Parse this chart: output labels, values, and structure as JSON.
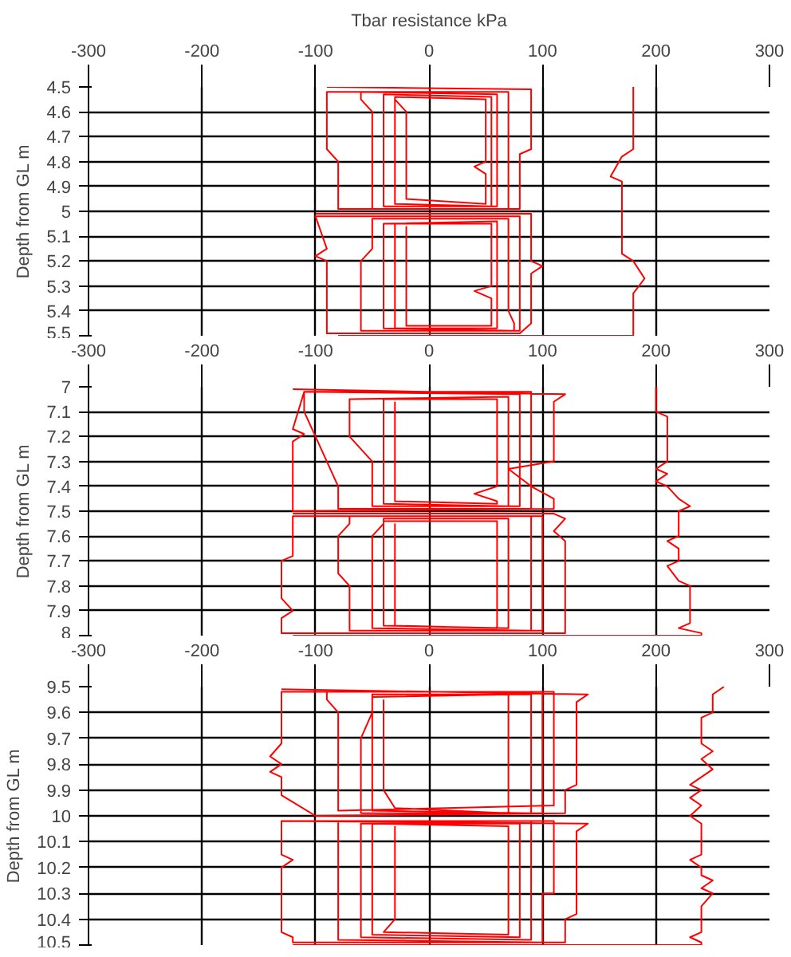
{
  "chart_data": [
    {
      "type": "line",
      "title": "Tbar resistance kPa",
      "ylabel": "Depth from GL m",
      "xlim": [
        -300,
        300
      ],
      "xticks": [
        -300,
        -200,
        -100,
        0,
        100,
        200,
        300
      ],
      "ylim": [
        5.5,
        4.5
      ],
      "yticks": [
        4.5,
        4.6,
        4.7,
        4.8,
        4.9,
        5,
        5.1,
        5.2,
        5.3,
        5.4,
        5.5
      ],
      "grid": true,
      "marker": "none",
      "line_style": "solid",
      "series": [
        {
          "color": "#ff0000",
          "x": [
            180,
            180,
            170,
            160,
            170,
            170,
            180,
            190,
            180,
            180,
            -80
          ],
          "values": [
            4.5,
            4.75,
            4.78,
            4.86,
            4.88,
            5.17,
            5.2,
            5.27,
            5.33,
            5.5,
            5.5
          ]
        },
        {
          "color": "#ff0000",
          "x": [
            -90,
            90,
            90,
            80,
            80,
            -80,
            -80,
            -90,
            -90,
            70,
            70,
            -50,
            -50,
            -60,
            -60,
            60,
            60,
            -40,
            -40,
            55,
            55,
            -30,
            -30,
            50,
            50,
            40,
            50,
            50,
            -20,
            -20,
            -30
          ],
          "values": [
            4.5,
            4.51,
            4.75,
            4.77,
            4.99,
            4.99,
            4.8,
            4.75,
            4.52,
            4.52,
            4.99,
            4.99,
            4.6,
            4.55,
            4.52,
            4.53,
            4.98,
            4.98,
            4.53,
            4.54,
            4.98,
            4.97,
            4.54,
            4.55,
            4.8,
            4.82,
            4.85,
            4.97,
            4.95,
            4.6,
            4.55
          ]
        },
        {
          "color": "#ff0000",
          "x": [
            -100,
            90,
            90,
            100,
            90,
            90,
            80,
            -90,
            -90,
            -100,
            -90,
            -100,
            80,
            80,
            -60,
            -60,
            -50,
            -50,
            70,
            70,
            75,
            75,
            -40,
            -40,
            60,
            60,
            -30,
            -30,
            55,
            55,
            40,
            55,
            55,
            -20,
            -20
          ],
          "values": [
            5.01,
            5.01,
            5.2,
            5.22,
            5.25,
            5.45,
            5.49,
            5.49,
            5.2,
            5.18,
            5.15,
            5.02,
            5.02,
            5.48,
            5.48,
            5.2,
            5.15,
            5.03,
            5.03,
            5.4,
            5.45,
            5.48,
            5.47,
            5.05,
            5.04,
            5.47,
            5.47,
            5.05,
            5.05,
            5.3,
            5.32,
            5.35,
            5.46,
            5.46,
            5.06
          ]
        }
      ]
    },
    {
      "type": "line",
      "ylabel": "Depth from GL m",
      "xlim": [
        -300,
        300
      ],
      "xticks": [
        -300,
        -200,
        -100,
        0,
        100,
        200,
        300
      ],
      "ylim": [
        8,
        7
      ],
      "yticks": [
        7,
        7.1,
        7.2,
        7.3,
        7.4,
        7.5,
        7.6,
        7.7,
        7.8,
        7.9,
        8
      ],
      "grid": true,
      "marker": "none",
      "line_style": "solid",
      "series": [
        {
          "color": "#ff0000",
          "x": [
            200,
            200,
            210,
            210,
            200,
            210,
            200,
            210,
            220,
            230,
            220,
            220,
            210,
            220,
            220,
            210,
            220,
            230,
            230,
            220,
            240,
            240,
            -120
          ],
          "values": [
            7.0,
            7.1,
            7.12,
            7.3,
            7.33,
            7.35,
            7.38,
            7.4,
            7.45,
            7.48,
            7.5,
            7.6,
            7.62,
            7.65,
            7.7,
            7.72,
            7.78,
            7.8,
            7.95,
            7.97,
            7.99,
            8.0,
            8.0
          ]
        },
        {
          "color": "#ff0000",
          "x": [
            -120,
            120,
            110,
            110,
            70,
            90,
            110,
            110,
            -120,
            -120,
            -110,
            -120,
            -110,
            90,
            90,
            -80,
            -80,
            -110,
            -110,
            80,
            80,
            -50,
            -50,
            -70,
            -70,
            70,
            70,
            -40,
            -40,
            60,
            60,
            40,
            60,
            60,
            -30,
            -30
          ],
          "values": [
            7.01,
            7.03,
            7.06,
            7.3,
            7.33,
            7.4,
            7.45,
            7.49,
            7.5,
            7.22,
            7.19,
            7.17,
            7.02,
            7.02,
            7.49,
            7.49,
            7.4,
            7.1,
            7.02,
            7.03,
            7.48,
            7.48,
            7.3,
            7.2,
            7.05,
            7.04,
            7.48,
            7.47,
            7.05,
            7.05,
            7.4,
            7.43,
            7.46,
            7.47,
            7.46,
            7.06
          ]
        },
        {
          "color": "#ff0000",
          "x": [
            -120,
            110,
            120,
            110,
            120,
            120,
            -130,
            -130,
            -120,
            -130,
            -130,
            -120,
            -120,
            100,
            100,
            -70,
            -70,
            -80,
            -80,
            -70,
            -70,
            90,
            90,
            -50,
            -50,
            -40,
            -40,
            70,
            70,
            -40,
            -40,
            60,
            60,
            -30,
            -30
          ],
          "values": [
            7.51,
            7.51,
            7.53,
            7.58,
            7.62,
            7.99,
            7.99,
            7.93,
            7.9,
            7.85,
            7.7,
            7.68,
            7.52,
            7.52,
            7.98,
            7.98,
            7.8,
            7.75,
            7.6,
            7.55,
            7.52,
            7.52,
            7.98,
            7.97,
            7.6,
            7.55,
            7.53,
            7.53,
            7.97,
            7.96,
            7.54,
            7.54,
            7.97,
            7.96,
            7.55
          ]
        }
      ]
    },
    {
      "type": "line",
      "ylabel": "Depth from GL m",
      "xlim": [
        -300,
        300
      ],
      "xticks": [
        -300,
        -200,
        -100,
        0,
        100,
        200,
        300
      ],
      "ylim": [
        10.5,
        9.5
      ],
      "yticks": [
        9.5,
        9.6,
        9.7,
        9.8,
        9.9,
        10,
        10.1,
        10.2,
        10.3,
        10.4,
        10.5
      ],
      "grid": true,
      "marker": "none",
      "line_style": "solid",
      "series": [
        {
          "color": "#ff0000",
          "x": [
            260,
            250,
            250,
            240,
            240,
            250,
            240,
            250,
            240,
            230,
            240,
            230,
            240,
            230,
            240,
            240,
            230,
            240,
            240,
            250,
            240,
            250,
            240,
            240,
            230,
            240,
            240,
            -120
          ],
          "values": [
            9.5,
            9.53,
            9.6,
            9.62,
            9.72,
            9.75,
            9.78,
            9.82,
            9.85,
            9.88,
            9.9,
            9.93,
            9.96,
            10.0,
            10.03,
            10.15,
            10.17,
            10.2,
            10.23,
            10.25,
            10.28,
            10.3,
            10.35,
            10.45,
            10.47,
            10.49,
            10.5,
            10.5
          ]
        },
        {
          "color": "#ff0000",
          "x": [
            -130,
            140,
            130,
            130,
            120,
            120,
            -100,
            -130,
            -130,
            -140,
            -130,
            -140,
            -130,
            -130,
            110,
            110,
            -80,
            -80,
            -90,
            -90,
            100,
            100,
            -60,
            -60,
            -50,
            -50,
            90,
            90,
            -50,
            -50,
            70,
            70,
            -30,
            -40,
            -40
          ],
          "values": [
            9.51,
            9.53,
            9.56,
            9.88,
            9.9,
            9.99,
            10.0,
            9.92,
            9.85,
            9.83,
            9.8,
            9.77,
            9.72,
            9.52,
            9.52,
            9.96,
            9.98,
            9.6,
            9.55,
            9.52,
            9.52,
            9.99,
            9.99,
            9.7,
            9.6,
            9.53,
            9.53,
            9.99,
            9.98,
            9.54,
            9.53,
            9.99,
            9.97,
            9.9,
            9.55
          ]
        },
        {
          "color": "#ff0000",
          "x": [
            -130,
            140,
            130,
            130,
            120,
            120,
            -120,
            -120,
            -130,
            -130,
            -120,
            -130,
            -130,
            110,
            110,
            100,
            100,
            -80,
            -80,
            90,
            90,
            -60,
            -60,
            80,
            80,
            -50,
            -50,
            70,
            70,
            -40,
            -30,
            -30
          ],
          "values": [
            10.02,
            10.03,
            10.06,
            10.38,
            10.4,
            10.49,
            10.49,
            10.47,
            10.45,
            10.2,
            10.17,
            10.15,
            10.02,
            10.02,
            10.3,
            10.3,
            10.49,
            10.48,
            10.02,
            10.02,
            10.48,
            10.47,
            10.03,
            10.03,
            10.47,
            10.46,
            10.03,
            10.04,
            10.46,
            10.45,
            10.4,
            10.04
          ]
        }
      ]
    }
  ]
}
